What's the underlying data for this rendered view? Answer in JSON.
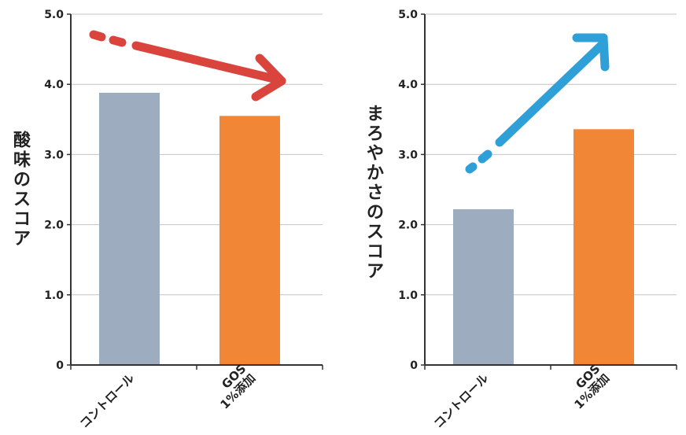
{
  "chart_data": [
    {
      "type": "bar",
      "ylabel": "酸味のスコア",
      "categories": [
        "コントロール",
        "GOS\n1%添加"
      ],
      "values": [
        3.88,
        3.55
      ],
      "ylim": [
        0,
        5
      ],
      "yticks": [
        "0",
        "1.0",
        "2.0",
        "3.0",
        "4.0",
        "5.0"
      ],
      "grid": true,
      "colors": [
        "#9dadbf",
        "#f08636"
      ],
      "trend": "down",
      "trend_color": "#d9453d"
    },
    {
      "type": "bar",
      "ylabel": "まろやかさのスコア",
      "categories": [
        "コントロール",
        "GOS\n1%添加"
      ],
      "values": [
        2.22,
        3.36
      ],
      "ylim": [
        0,
        5
      ],
      "yticks": [
        "0",
        "1.0",
        "2.0",
        "3.0",
        "4.0",
        "5.0"
      ],
      "grid": true,
      "colors": [
        "#9dadbf",
        "#f08636"
      ],
      "trend": "up",
      "trend_color": "#2f9fd8"
    }
  ]
}
